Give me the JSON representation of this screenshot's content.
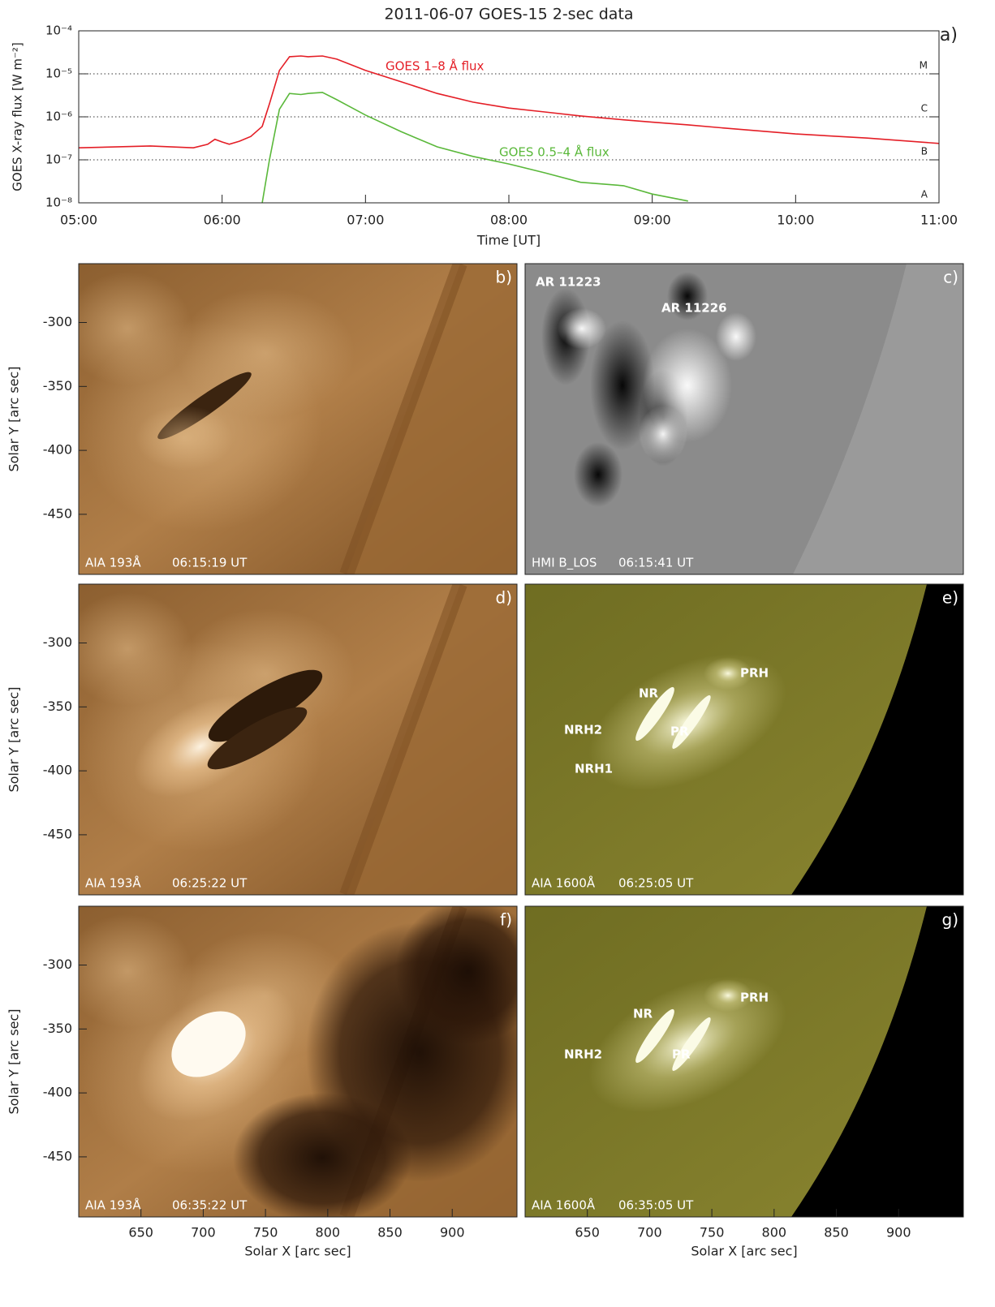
{
  "chart_data": [
    {
      "type": "line",
      "title": "2011-06-07  GOES-15  2-sec data",
      "panel_label": "a)",
      "xlabel": "Time [UT]",
      "ylabel": "GOES X-ray flux [W m⁻²]",
      "log": true,
      "grid": true,
      "x": [
        5.0,
        5.5,
        5.8,
        5.9,
        5.95,
        6.0,
        6.05,
        6.12,
        6.2,
        6.28,
        6.33,
        6.4,
        6.47,
        6.55,
        6.6,
        6.7,
        6.8,
        7.0,
        7.25,
        7.5,
        7.75,
        8.0,
        8.25,
        8.5,
        8.8,
        9.0,
        9.25,
        9.5,
        10.0,
        10.5,
        11.0
      ],
      "xlim": [
        5,
        11
      ],
      "xticks": [
        {
          "value": 5,
          "label": "05:00"
        },
        {
          "value": 6,
          "label": "06:00"
        },
        {
          "value": 7,
          "label": "07:00"
        },
        {
          "value": 8,
          "label": "08:00"
        },
        {
          "value": 9,
          "label": "09:00"
        },
        {
          "value": 10,
          "label": "10:00"
        },
        {
          "value": 11,
          "label": "11:00"
        }
      ],
      "ylim": [
        1e-08,
        0.0001
      ],
      "yticks": [
        {
          "value": 1e-08,
          "label": "10⁻⁸"
        },
        {
          "value": 1e-07,
          "label": "10⁻⁷"
        },
        {
          "value": 1e-06,
          "label": "10⁻⁶"
        },
        {
          "value": 1e-05,
          "label": "10⁻⁵"
        },
        {
          "value": 0.0001,
          "label": "10⁻⁴"
        }
      ],
      "y2lim": [
        1e-08,
        0.0001
      ],
      "y2ticks": [
        {
          "value": 1e-08,
          "label": "A"
        },
        {
          "value": 1e-07,
          "label": "B"
        },
        {
          "value": 1e-06,
          "label": "C"
        },
        {
          "value": 1e-05,
          "label": "M"
        }
      ],
      "series": [
        {
          "name": "GOES 1–8 Å flux",
          "color": "#e41e26",
          "values": [
            1.9e-07,
            2.1e-07,
            1.9e-07,
            2.3e-07,
            3e-07,
            2.6e-07,
            2.3e-07,
            2.7e-07,
            3.5e-07,
            6e-07,
            2e-06,
            1.2e-05,
            2.5e-05,
            2.6e-05,
            2.5e-05,
            2.6e-05,
            2.2e-05,
            1.2e-05,
            6.5e-06,
            3.5e-06,
            2.2e-06,
            1.6e-06,
            1.3e-06,
            1.05e-06,
            8.5e-07,
            7.5e-07,
            6.5e-07,
            5.5e-07,
            4e-07,
            3.2e-07,
            2.4e-07
          ]
        },
        {
          "name": "GOES 0.5–4 Å flux",
          "color": "#5ab83a",
          "values": [
            null,
            null,
            null,
            null,
            null,
            null,
            null,
            null,
            null,
            1e-08,
            1e-07,
            1.5e-06,
            3.5e-06,
            3.3e-06,
            3.5e-06,
            3.7e-06,
            2.5e-06,
            1.1e-06,
            4.5e-07,
            2e-07,
            1.2e-07,
            8e-08,
            5e-08,
            3e-08,
            2.5e-08,
            1.6e-08,
            1.1e-08,
            null,
            null,
            null,
            null
          ]
        }
      ]
    },
    {
      "type": "image",
      "panel_label": "b)",
      "instrument": "AIA 193Å",
      "time": "06:15:19 UT",
      "xlim": [
        600,
        952
      ],
      "ylim": [
        -497,
        -254
      ],
      "ylabel": "Solar Y [arc sec]",
      "yticks": [
        -300,
        -350,
        -400,
        -450
      ]
    },
    {
      "type": "image",
      "panel_label": "c)",
      "instrument": "HMI B_LOS",
      "time": "06:15:41 UT",
      "xlim": [
        600,
        952
      ],
      "ylim": [
        -497,
        -254
      ],
      "annotations": [
        "AR 11223",
        "AR 11226"
      ]
    },
    {
      "type": "image",
      "panel_label": "d)",
      "instrument": "AIA 193Å",
      "time": "06:25:22 UT",
      "xlim": [
        600,
        952
      ],
      "ylim": [
        -497,
        -254
      ],
      "ylabel": "Solar Y [arc sec]",
      "yticks": [
        -300,
        -350,
        -400,
        -450
      ]
    },
    {
      "type": "image",
      "panel_label": "e)",
      "instrument": "AIA 1600Å",
      "time": "06:25:05 UT",
      "xlim": [
        600,
        952
      ],
      "ylim": [
        -497,
        -254
      ],
      "annotations": [
        "NR",
        "PRH",
        "NRH2",
        "PR",
        "NRH1"
      ]
    },
    {
      "type": "image",
      "panel_label": "f)",
      "instrument": "AIA 193Å",
      "time": "06:35:22 UT",
      "xlim": [
        600,
        952
      ],
      "ylim": [
        -497,
        -254
      ],
      "ylabel": "Solar Y [arc sec]",
      "yticks": [
        -300,
        -350,
        -400,
        -450
      ],
      "xlabel": "Solar X [arc sec]",
      "xticks": [
        650,
        700,
        750,
        800,
        850,
        900
      ]
    },
    {
      "type": "image",
      "panel_label": "g)",
      "instrument": "AIA 1600Å",
      "time": "06:35:05 UT",
      "xlim": [
        600,
        952
      ],
      "ylim": [
        -497,
        -254
      ],
      "annotations": [
        "NR",
        "PRH",
        "NRH2",
        "PR"
      ],
      "xlabel": "Solar X [arc sec]",
      "xticks": [
        650,
        700,
        750,
        800,
        850,
        900
      ]
    }
  ]
}
